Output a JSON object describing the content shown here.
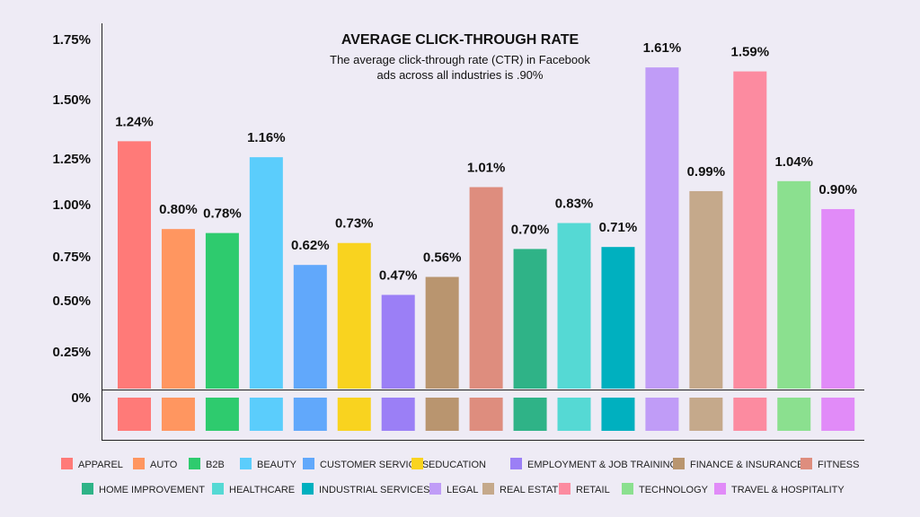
{
  "chart_data": {
    "type": "bar",
    "title": "AVERAGE CLICK-THROUGH RATE",
    "subtitle": [
      "The average click-through rate (CTR) in Facebook",
      "ads across all industries is .90%"
    ],
    "y_ticks": [
      "0%",
      "0.25%",
      "0.50%",
      "0.75%",
      "1.00%",
      "1.25%",
      "1.50%",
      "1.75%"
    ],
    "ylim": [
      0,
      1.75
    ],
    "grid": false,
    "legend_position": "bottom",
    "categories": [
      "APPAREL",
      "AUTO",
      "B2B",
      "BEAUTY",
      "CUSTOMER SERVICES",
      "EDUCATION",
      "EMPLOYMENT & JOB TRAINING",
      "FINANCE & INSURANCE",
      "FITNESS",
      "HOME IMPROVEMENT",
      "HEALTHCARE",
      "INDUSTRIAL SERVICES",
      "LEGAL",
      "REAL ESTATE",
      "RETAIL",
      "TECHNOLOGY",
      "TRAVEL & HOSPITALITY"
    ],
    "values": [
      1.24,
      0.8,
      0.78,
      1.16,
      0.62,
      0.73,
      0.47,
      0.56,
      1.01,
      0.7,
      0.83,
      0.71,
      1.61,
      0.99,
      1.59,
      1.04,
      0.9
    ],
    "value_labels": [
      "1.24%",
      "0.80%",
      "0.78%",
      "1.16%",
      "0.62%",
      "0.73%",
      "0.47%",
      "0.56%",
      "1.01%",
      "0.70%",
      "0.83%",
      "0.71%",
      "1.61%",
      "0.99%",
      "1.59%",
      "1.04%",
      "0.90%"
    ],
    "colors": [
      "#ff7a78",
      "#ff9660",
      "#2ecb6e",
      "#5bcdfc",
      "#61a8fb",
      "#f9d31f",
      "#9b7ff6",
      "#b9956f",
      "#de8d7e",
      "#2fb387",
      "#55d9d4",
      "#00b0bf",
      "#c09cf7",
      "#c5a98b",
      "#fc8ba0",
      "#8be08f",
      "#e18bf8"
    ]
  }
}
